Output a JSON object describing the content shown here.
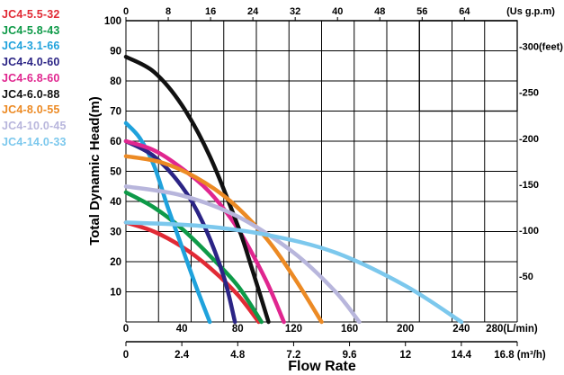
{
  "chart_data": {
    "type": "line",
    "xlabel": "Flow Rate",
    "ylabel": "Total Dynamic Head(m)",
    "x_unit": "L/min",
    "y_unit": "m",
    "xlim": [
      0,
      280
    ],
    "ylim": [
      0,
      100
    ],
    "x_ticks": [
      "0",
      "40",
      "80",
      "120",
      "160",
      "200",
      "240",
      "280(L/min)"
    ],
    "y_ticks": [
      "10",
      "20",
      "30",
      "40",
      "50",
      "60",
      "70",
      "80",
      "90",
      "100"
    ],
    "top_axis": {
      "unit": "Us g.p.m",
      "ticks": [
        "0",
        "8",
        "16",
        "24",
        "32",
        "40",
        "48",
        "56",
        "64",
        "(Us g.p.m)"
      ]
    },
    "bottom_axis": {
      "unit": "m³/h",
      "ticks": [
        "0",
        "2.4",
        "4.8",
        "7.2",
        "9.6",
        "12",
        "14.4",
        "16.8 (m³/h)"
      ]
    },
    "right_axis": {
      "unit": "feet",
      "ticks": [
        "-50",
        "-100",
        "-150",
        "-200",
        "-250",
        "-300(feet)"
      ]
    },
    "grid": true,
    "legend_position": "left",
    "series": [
      {
        "name": "JC4-5.5-32",
        "color": "#e12a35",
        "x": [
          0,
          20,
          40,
          60,
          80,
          95
        ],
        "y": [
          33,
          30,
          25,
          18,
          9,
          0
        ]
      },
      {
        "name": "JC4-5.8-43",
        "color": "#0e9a48",
        "x": [
          0,
          20,
          40,
          60,
          80,
          97
        ],
        "y": [
          43,
          38,
          31,
          22,
          12,
          0
        ]
      },
      {
        "name": "JC4-3.1-66",
        "color": "#1fa2dc",
        "x": [
          0,
          10,
          20,
          30,
          40,
          50,
          60
        ],
        "y": [
          66,
          61,
          52,
          38,
          25,
          12,
          0
        ]
      },
      {
        "name": "JC4-4.0-60",
        "color": "#2b2485",
        "x": [
          0,
          20,
          40,
          55,
          70,
          78
        ],
        "y": [
          60,
          55,
          45,
          33,
          15,
          0
        ]
      },
      {
        "name": "JC4-6.8-60",
        "color": "#e0268f",
        "x": [
          0,
          20,
          40,
          60,
          80,
          100,
          113
        ],
        "y": [
          60,
          57,
          51,
          43,
          31,
          14,
          0
        ]
      },
      {
        "name": "JC4-6.0-88",
        "color": "#111111",
        "x": [
          0,
          20,
          40,
          60,
          80,
          90,
          102
        ],
        "y": [
          88,
          83,
          72,
          55,
          32,
          18,
          0
        ]
      },
      {
        "name": "JC4-8.0-55",
        "color": "#ec8a24",
        "x": [
          0,
          25,
          50,
          75,
          100,
          120,
          140
        ],
        "y": [
          55,
          53,
          48,
          40,
          28,
          15,
          0
        ]
      },
      {
        "name": "JC4-10.0-45",
        "color": "#b8b6dc",
        "x": [
          0,
          40,
          80,
          120,
          150,
          167
        ],
        "y": [
          45,
          42,
          35,
          23,
          10,
          0
        ]
      },
      {
        "name": "JC4-14.0-33",
        "color": "#7cc8ed",
        "x": [
          0,
          50,
          100,
          150,
          200,
          240
        ],
        "y": [
          33,
          32,
          29,
          23,
          12,
          0
        ]
      }
    ]
  }
}
